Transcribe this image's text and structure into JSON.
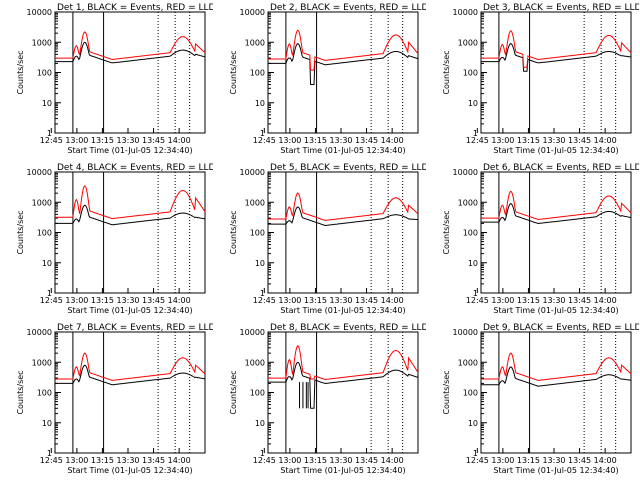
{
  "chart_data": [
    {
      "type": "line",
      "title": "Det 1, BLACK = Events, RED = LLD",
      "xlabel": "Start Time (01-Jul-05 12:34:40)",
      "ylabel": "Counts/sec",
      "yscale": "log",
      "ylim": [
        1,
        10000
      ],
      "xlim_minutes": [
        12.5,
        100.5
      ],
      "x_tick_labels": [
        "12:45",
        "13:00",
        "13:15",
        "13:30",
        "13:45",
        "14:00"
      ],
      "y_tick_labels": [
        "1",
        "10",
        "100",
        "1000",
        "10000"
      ],
      "solid_markers_minutes": [
        23,
        41
      ],
      "dotted_markers_minutes": [
        73,
        83,
        91.5
      ],
      "series": [
        {
          "name": "Events",
          "color": "#000000"
        },
        {
          "name": "LLD",
          "color": "#ff0000"
        }
      ],
      "profile": {
        "base_lld": 300,
        "base_events": 230,
        "peak_lld": 2200,
        "peak_events": 1000,
        "dip": false
      },
      "grid": false,
      "legend": "in title"
    },
    {
      "type": "line",
      "title": "Det 2, BLACK = Events, RED = LLD",
      "xlabel": "Start Time (01-Jul-05 12:34:40)",
      "ylabel": "Counts/sec",
      "yscale": "log",
      "ylim": [
        1,
        10000
      ],
      "xlim_minutes": [
        12.5,
        100.5
      ],
      "x_tick_labels": [
        "12:45",
        "13:00",
        "13:15",
        "13:30",
        "13:45",
        "14:00"
      ],
      "y_tick_labels": [
        "1",
        "10",
        "100",
        "1000",
        "10000"
      ],
      "solid_markers_minutes": [
        23,
        41
      ],
      "dotted_markers_minutes": [
        73,
        83,
        91.5
      ],
      "series": [
        {
          "name": "Events",
          "color": "#000000"
        },
        {
          "name": "LLD",
          "color": "#ff0000"
        }
      ],
      "profile": {
        "base_lld": 280,
        "base_events": 200,
        "peak_lld": 2500,
        "peak_events": 900,
        "dip": true,
        "dip_events": 40,
        "dip_lld": 120
      },
      "grid": false,
      "legend": "in title"
    },
    {
      "type": "line",
      "title": "Det 3, BLACK = Events, RED = LLD",
      "xlabel": "Start Time (01-Jul-05 12:34:40)",
      "ylabel": "Counts/sec",
      "yscale": "log",
      "ylim": [
        1,
        10000
      ],
      "xlim_minutes": [
        12.5,
        100.5
      ],
      "x_tick_labels": [
        "12:45",
        "13:00",
        "13:15",
        "13:30",
        "13:45",
        "14:00"
      ],
      "y_tick_labels": [
        "1",
        "10",
        "100",
        "1000",
        "10000"
      ],
      "solid_markers_minutes": [
        23,
        41
      ],
      "dotted_markers_minutes": [
        73,
        83,
        91.5
      ],
      "series": [
        {
          "name": "Events",
          "color": "#000000"
        },
        {
          "name": "LLD",
          "color": "#ff0000"
        }
      ],
      "profile": {
        "base_lld": 300,
        "base_events": 230,
        "peak_lld": 2400,
        "peak_events": 900,
        "dip": true,
        "dip_events": 110,
        "dip_lld": 150
      },
      "grid": false,
      "legend": "in title"
    },
    {
      "type": "line",
      "title": "Det 4, BLACK = Events, RED = LLD",
      "xlabel": "Start Time (01-Jul-05 12:34:40)",
      "ylabel": "Counts/sec",
      "yscale": "log",
      "ylim": [
        1,
        10000
      ],
      "xlim_minutes": [
        12.5,
        100.5
      ],
      "x_tick_labels": [
        "12:45",
        "13:00",
        "13:15",
        "13:30",
        "13:45",
        "14:00"
      ],
      "y_tick_labels": [
        "1",
        "10",
        "100",
        "1000",
        "10000"
      ],
      "solid_markers_minutes": [
        23,
        41
      ],
      "dotted_markers_minutes": [
        73,
        83,
        91.5
      ],
      "series": [
        {
          "name": "Events",
          "color": "#000000"
        },
        {
          "name": "LLD",
          "color": "#ff0000"
        }
      ],
      "profile": {
        "base_lld": 320,
        "base_events": 200,
        "peak_lld": 3500,
        "peak_events": 800,
        "dip": false
      },
      "grid": false,
      "legend": "in title"
    },
    {
      "type": "line",
      "title": "Det 5, BLACK = Events, RED = LLD",
      "xlabel": "Start Time (01-Jul-05 12:34:40)",
      "ylabel": "Counts/sec",
      "yscale": "log",
      "ylim": [
        1,
        10000
      ],
      "xlim_minutes": [
        12.5,
        100.5
      ],
      "x_tick_labels": [
        "12:45",
        "13:00",
        "13:15",
        "13:30",
        "13:45",
        "14:00"
      ],
      "y_tick_labels": [
        "1",
        "10",
        "100",
        "1000",
        "10000"
      ],
      "solid_markers_minutes": [
        23,
        41
      ],
      "dotted_markers_minutes": [
        73,
        83,
        91.5
      ],
      "series": [
        {
          "name": "Events",
          "color": "#000000"
        },
        {
          "name": "LLD",
          "color": "#ff0000"
        }
      ],
      "profile": {
        "base_lld": 280,
        "base_events": 190,
        "peak_lld": 2000,
        "peak_events": 700,
        "dip": false
      },
      "grid": false,
      "legend": "in title"
    },
    {
      "type": "line",
      "title": "Det 6, BLACK = Events, RED = LLD",
      "xlabel": "Start Time (01-Jul-05 12:34:40)",
      "ylabel": "Counts/sec",
      "yscale": "log",
      "ylim": [
        1,
        10000
      ],
      "xlim_minutes": [
        12.5,
        100.5
      ],
      "x_tick_labels": [
        "12:45",
        "13:00",
        "13:15",
        "13:30",
        "13:45",
        "14:00"
      ],
      "y_tick_labels": [
        "1",
        "10",
        "100",
        "1000",
        "10000"
      ],
      "solid_markers_minutes": [
        23,
        41
      ],
      "dotted_markers_minutes": [
        73,
        83,
        91.5
      ],
      "series": [
        {
          "name": "Events",
          "color": "#000000"
        },
        {
          "name": "LLD",
          "color": "#ff0000"
        }
      ],
      "profile": {
        "base_lld": 300,
        "base_events": 220,
        "peak_lld": 2300,
        "peak_events": 900,
        "dip": false
      },
      "grid": false,
      "legend": "in title"
    },
    {
      "type": "line",
      "title": "Det 7, BLACK = Events, RED = LLD",
      "xlabel": "Start Time (01-Jul-05 12:34:40)",
      "ylabel": "Counts/sec",
      "yscale": "log",
      "ylim": [
        1,
        10000
      ],
      "xlim_minutes": [
        12.5,
        100.5
      ],
      "x_tick_labels": [
        "12:45",
        "13:00",
        "13:15",
        "13:30",
        "13:45",
        "14:00"
      ],
      "y_tick_labels": [
        "1",
        "10",
        "100",
        "1000",
        "10000"
      ],
      "solid_markers_minutes": [
        23,
        41
      ],
      "dotted_markers_minutes": [
        73,
        83,
        91.5
      ],
      "series": [
        {
          "name": "Events",
          "color": "#000000"
        },
        {
          "name": "LLD",
          "color": "#ff0000"
        }
      ],
      "profile": {
        "base_lld": 280,
        "base_events": 200,
        "peak_lld": 2000,
        "peak_events": 800,
        "dip": false
      },
      "grid": false,
      "legend": "in title"
    },
    {
      "type": "line",
      "title": "Det 8, BLACK = Events, RED = LLD",
      "xlabel": "Start Time (01-Jul-05 12:34:40)",
      "ylabel": "Counts/sec",
      "yscale": "log",
      "ylim": [
        1,
        10000
      ],
      "xlim_minutes": [
        12.5,
        100.5
      ],
      "x_tick_labels": [
        "12:45",
        "13:00",
        "13:15",
        "13:30",
        "13:45",
        "14:00"
      ],
      "y_tick_labels": [
        "1",
        "10",
        "100",
        "1000",
        "10000"
      ],
      "solid_markers_minutes": [
        23,
        41
      ],
      "dotted_markers_minutes": [
        73,
        83,
        91.5
      ],
      "series": [
        {
          "name": "Events",
          "color": "#000000"
        },
        {
          "name": "LLD",
          "color": "#ff0000"
        }
      ],
      "profile": {
        "base_lld": 300,
        "base_events": 220,
        "peak_lld": 3500,
        "peak_events": 1000,
        "dip": true,
        "dip_events": 30,
        "dip_lld": 280,
        "spikes": true
      },
      "grid": false,
      "legend": "in title"
    },
    {
      "type": "line",
      "title": "Det 9, BLACK = Events, RED = LLD",
      "xlabel": "Start Time (01-Jul-05 12:34:40)",
      "ylabel": "Counts/sec",
      "yscale": "log",
      "ylim": [
        1,
        10000
      ],
      "xlim_minutes": [
        12.5,
        100.5
      ],
      "x_tick_labels": [
        "12:45",
        "13:00",
        "13:15",
        "13:30",
        "13:45",
        "14:00"
      ],
      "y_tick_labels": [
        "1",
        "10",
        "100",
        "1000",
        "10000"
      ],
      "solid_markers_minutes": [
        23,
        41
      ],
      "dotted_markers_minutes": [
        73,
        83,
        91.5
      ],
      "series": [
        {
          "name": "Events",
          "color": "#000000"
        },
        {
          "name": "LLD",
          "color": "#ff0000"
        }
      ],
      "profile": {
        "base_lld": 280,
        "base_events": 180,
        "peak_lld": 2000,
        "peak_events": 700,
        "dip": false
      },
      "grid": false,
      "legend": "in title"
    }
  ]
}
